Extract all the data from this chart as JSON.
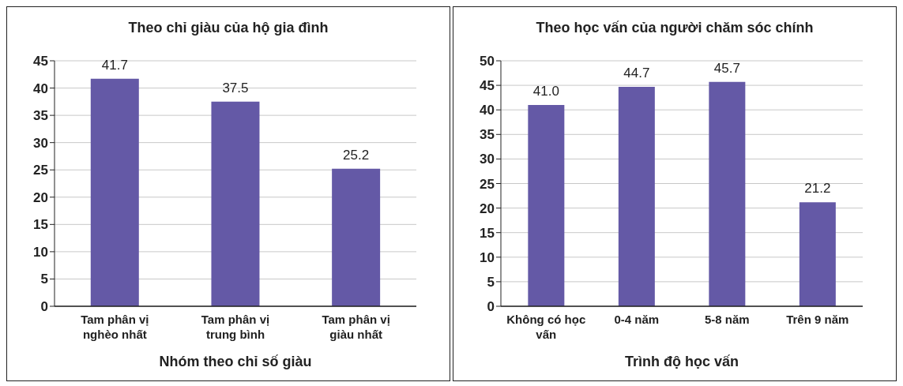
{
  "chart_data": [
    {
      "type": "bar",
      "title": "Theo chỉ giàu của hộ gia đình",
      "xlabel": "Nhóm theo chỉ số giàu",
      "categories": [
        "Tam phân vị nghèo nhất",
        "Tam phân vị trung bình",
        "Tam phân vị giàu nhất"
      ],
      "values": [
        41.7,
        37.5,
        25.2
      ],
      "value_labels": [
        "41.7",
        "37.5",
        "25.2"
      ],
      "color": "#6459a6",
      "ylim": [
        0,
        45
      ],
      "yticks": [
        0,
        5,
        10,
        15,
        20,
        25,
        30,
        35,
        40,
        45
      ],
      "grid": "y"
    },
    {
      "type": "bar",
      "title": "Theo học vấn của người chăm sóc chính",
      "xlabel": "Trình độ học vấn",
      "categories": [
        "Không có học vấn",
        "0-4 năm",
        "5-8 năm",
        "Trên 9 năm"
      ],
      "values": [
        41.0,
        44.7,
        45.7,
        21.2
      ],
      "value_labels": [
        "41.0",
        "44.7",
        "45.7",
        "21.2"
      ],
      "color": "#6459a6",
      "ylim": [
        0,
        50
      ],
      "yticks": [
        0,
        5,
        10,
        15,
        20,
        25,
        30,
        35,
        40,
        45,
        50
      ],
      "grid": "y"
    }
  ]
}
